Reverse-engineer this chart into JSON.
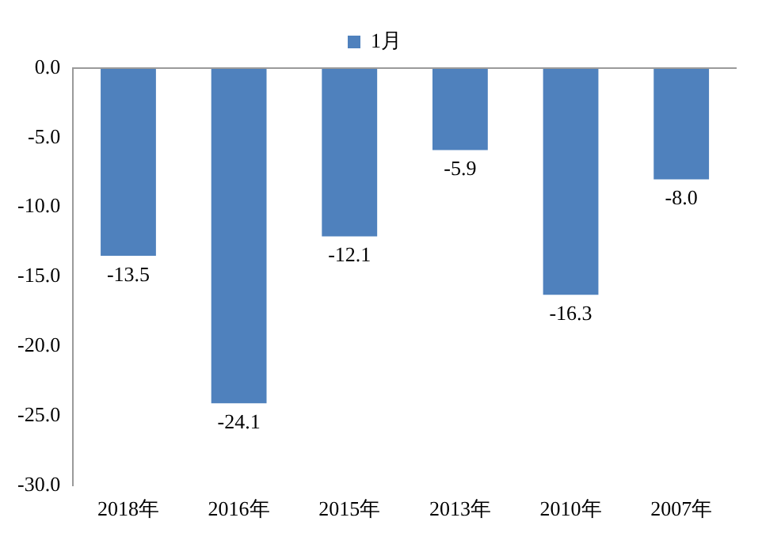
{
  "chart_data": {
    "type": "bar",
    "categories": [
      "2018年",
      "2016年",
      "2015年",
      "2013年",
      "2010年",
      "2007年"
    ],
    "series": [
      {
        "name": "1月",
        "color": "#4f81bd",
        "values": [
          -13.5,
          -24.1,
          -12.1,
          -5.9,
          -16.3,
          -8.0
        ],
        "value_labels": [
          "-13.5",
          "-24.1",
          "-12.1",
          "-5.9",
          "-16.3",
          "-8.0"
        ]
      }
    ],
    "ylim": [
      -30,
      0
    ],
    "yticks": [
      {
        "value": -30,
        "label": "-30.0"
      },
      {
        "value": -25,
        "label": "-25.0"
      },
      {
        "value": -20,
        "label": "-20.0"
      },
      {
        "value": -15,
        "label": "-15.0"
      },
      {
        "value": -10,
        "label": "-10.0"
      },
      {
        "value": -5,
        "label": "-5.0"
      },
      {
        "value": 0,
        "label": "0.0"
      }
    ],
    "grid": false,
    "legend": "top"
  }
}
